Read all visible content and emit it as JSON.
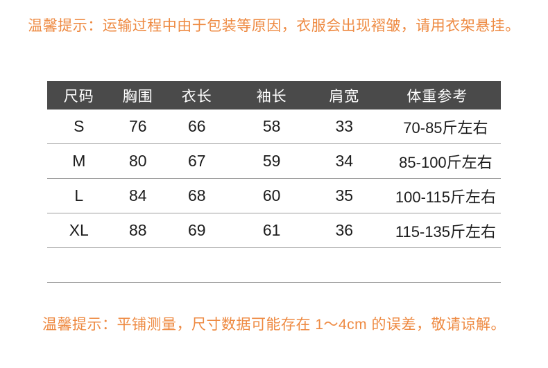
{
  "page": {
    "background": "#ffffff",
    "accent_orange": "#ee8a42",
    "header_bg": "#4a4a4a",
    "header_text_color": "#ffffff",
    "row_border_color": "#9c9c9c",
    "body_text_color": "#1c1c1c"
  },
  "top_notice": {
    "text": "温馨提示：运输过程中由于包装等原因，衣服会出现褶皱，请用衣架悬挂。"
  },
  "bottom_notice": {
    "text": "温馨提示：平铺测量，尺寸数据可能存在 1～4cm 的误差，敬请谅解。"
  },
  "chart_data": {
    "type": "table",
    "title": "服装尺码表 (size chart)",
    "columns": [
      "尺码",
      "胸围",
      "衣长",
      "袖长",
      "肩宽",
      "体重参考"
    ],
    "rows": [
      [
        "S",
        "76",
        "66",
        "58",
        "33",
        "70-85斤左右"
      ],
      [
        "M",
        "80",
        "67",
        "59",
        "34",
        "85-100斤左右"
      ],
      [
        "L",
        "84",
        "68",
        "60",
        "35",
        "100-115斤左右"
      ],
      [
        "XL",
        "88",
        "69",
        "61",
        "36",
        "115-135斤左右"
      ]
    ],
    "layout_hints": {
      "header_style": "dark-bar-white-text",
      "grid": "horizontal-row-separators-only",
      "trailing_empty_row": true
    }
  }
}
